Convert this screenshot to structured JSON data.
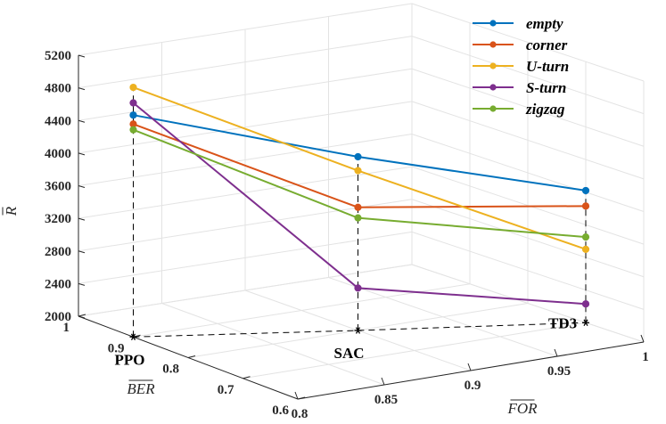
{
  "chart_data": {
    "type": "line3d",
    "title": "",
    "xlabel": "FOR",
    "ylabel": "BER",
    "zlabel": "R",
    "x_ticks": [
      "0.8",
      "0.85",
      "0.9",
      "0.95",
      "1"
    ],
    "y_ticks": [
      "1",
      "0.9",
      "0.8",
      "0.7",
      "0.6"
    ],
    "z_ticks": [
      "2000",
      "2400",
      "2800",
      "3200",
      "3600",
      "4000",
      "4400",
      "4800",
      "5200"
    ],
    "xlim": [
      0.8,
      1.0
    ],
    "ylim": [
      0.6,
      1.0
    ],
    "zlim": [
      2000,
      5200
    ],
    "categories": [
      "PPO",
      "SAC",
      "TD3"
    ],
    "series": [
      {
        "name": "empty",
        "color": "#0072BD",
        "values": [
          4720,
          4130,
          3620
        ]
      },
      {
        "name": "corner",
        "color": "#D95319",
        "values": [
          4610,
          3510,
          3430
        ]
      },
      {
        "name": "U-turn",
        "color": "#EDB120",
        "values": [
          5060,
          3960,
          2900
        ]
      },
      {
        "name": "S-turn",
        "color": "#7E2F8E",
        "values": [
          4870,
          2520,
          2230
        ]
      },
      {
        "name": "zigzag",
        "color": "#77AC30",
        "values": [
          4540,
          3380,
          3050
        ]
      }
    ],
    "legend_position": "top-right",
    "grid": true
  }
}
